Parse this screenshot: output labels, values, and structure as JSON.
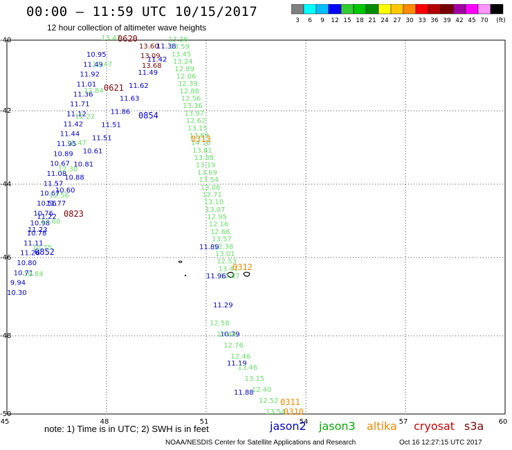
{
  "title": "00:00 – 11:59 UTC 10/15/2017",
  "subtitle": "12 hour collection of altimeter wave heights",
  "color_scale": {
    "colors": [
      "#808080",
      "#00ffff",
      "#00bfff",
      "#0000ff",
      "#32cd32",
      "#00c800",
      "#008c00",
      "#ffff00",
      "#ffc800",
      "#ff8c00",
      "#ff0000",
      "#b40000",
      "#780000",
      "#a000a0",
      "#ff00ff",
      "#ff96ff",
      "#000000"
    ],
    "labels": [
      "3",
      "6",
      "9",
      "12",
      "15",
      "18",
      "21",
      "24",
      "27",
      "30",
      "33",
      "36",
      "39",
      "42",
      "45",
      "70",
      "(ft)"
    ]
  },
  "axes": {
    "lat_labels": [
      "-40",
      "-42",
      "-44",
      "-46",
      "-48",
      "-50"
    ],
    "lon_labels": [
      "45",
      "48",
      "51",
      "54",
      "57",
      "60"
    ]
  },
  "satellite_colors": {
    "jason2": "#0000cc",
    "jason3": "#66dd66",
    "altika": "#ee8800",
    "cryosat": "#cc0000",
    "s3a": "#7a0000"
  },
  "tracks": [
    {
      "satellite": "jason2",
      "pass_label": "0852",
      "values": [
        "10.95",
        "11.49",
        "11.92",
        "11.01",
        "11.36",
        "11.71",
        "11.12",
        "11.42",
        "11.44",
        "11.95",
        "10.89",
        "10.67",
        "11.08",
        "11.57",
        "10.67",
        "10.56",
        "10.76",
        "10.98",
        "10.78",
        "11.11",
        "11.26",
        "10.80",
        "10.71",
        "9.94",
        "10.30"
      ]
    },
    {
      "satellite": "jason3",
      "pass_label": "",
      "values": [
        "13.47",
        "12.47",
        "12.84",
        "12.22",
        "12.47",
        "12.30",
        "12.56",
        "12.60",
        "10.75",
        "10.84"
      ]
    },
    {
      "satellite": "s3a",
      "pass_label": "0620",
      "values": [
        "13.60",
        "13.09",
        "13.68"
      ]
    },
    {
      "satellite": "s3a",
      "pass_label": "0621",
      "values": []
    },
    {
      "satellite": "s3a",
      "pass_label": "0823",
      "values": []
    },
    {
      "satellite": "jason2",
      "pass_label": "0854",
      "values": [
        "11.38",
        "11.42",
        "11.49",
        "11.62",
        "11.63",
        "11.86",
        "11.51",
        "11.51",
        "10.61",
        "10.81",
        "10.88",
        "10.60",
        "11.77",
        "11.22",
        "11.23"
      ]
    },
    {
      "satellite": "jason3",
      "pass_label": "",
      "values": [
        "13.36",
        "13.59",
        "13.45",
        "13.24",
        "12.89",
        "12.06",
        "12.39",
        "12.88",
        "12.56",
        "13.36",
        "13.97",
        "12.62",
        "13.15",
        "13.69",
        "14.10",
        "13.81",
        "13.88",
        "13.19",
        "13.69",
        "13.54",
        "13.06",
        "12.71",
        "13.10",
        "13.07",
        "12.95",
        "12.16",
        "12.66",
        "13.57",
        "12.38",
        "13.01",
        "12.53",
        "13.41",
        "12.87"
      ]
    },
    {
      "satellite": "altika",
      "pass_label": "0313",
      "values": []
    },
    {
      "satellite": "altika",
      "pass_label": "0312",
      "values": []
    },
    {
      "satellite": "jason2",
      "pass_label": "",
      "values": [
        "11.89",
        "11.96",
        "11.29",
        "10.79",
        "11.19",
        "11.88"
      ]
    },
    {
      "satellite": "jason3",
      "pass_label": "",
      "values": [
        "12.58",
        "13.44",
        "12.76",
        "12.46",
        "13.46",
        "13.15",
        "12.40",
        "12.52",
        "13.54"
      ]
    },
    {
      "satellite": "altika",
      "pass_label": "0311",
      "values": []
    },
    {
      "satellite": "altika",
      "pass_label": "0310",
      "values": []
    }
  ],
  "note": "note: 1) Time is in UTC; 2) SWH is in feet",
  "legend": {
    "jason2": "jason2",
    "jason3": "jason3",
    "altika": "altika",
    "cryosat": "cryosat",
    "s3a": "s3a"
  },
  "footer": "NOAA/NESDIS Center for Satellite Applications and Research",
  "footer_time": "Oct 16 12:27:15 UTC 2017"
}
